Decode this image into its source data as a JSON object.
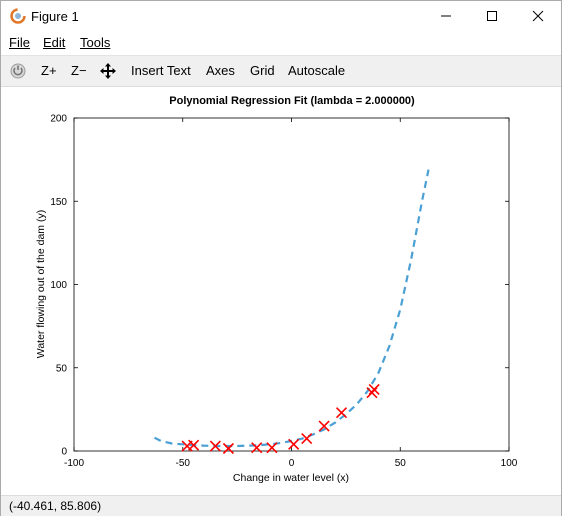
{
  "window": {
    "title": "Figure 1"
  },
  "menu": {
    "file": "File",
    "edit": "Edit",
    "tools": "Tools"
  },
  "toolbar": {
    "zoom_in": "Z+",
    "zoom_out": "Z−",
    "insert_text": "Insert Text",
    "axes": "Axes",
    "grid": "Grid",
    "autoscale": "Autoscale"
  },
  "status": {
    "coords": "(-40.461, 85.806)"
  },
  "colors": {
    "fit_line": "#4a9fd4",
    "markers": "#ff0000"
  },
  "chart_data": {
    "type": "scatter",
    "title": "Polynomial Regression Fit (lambda = 2.000000)",
    "xlabel": "Change in water level (x)",
    "ylabel": "Water flowing out of the dam (y)",
    "xlim": [
      -100,
      100
    ],
    "ylim": [
      0,
      200
    ],
    "xticks": [
      -100,
      -50,
      0,
      50,
      100
    ],
    "yticks": [
      0,
      50,
      100,
      150,
      200
    ],
    "xtick_labels": [
      "-100",
      "-50",
      "0",
      "50",
      "100"
    ],
    "ytick_labels": [
      "0",
      "50",
      "100",
      "150",
      "200"
    ],
    "series": [
      {
        "style": "x-markers",
        "x": [
          -48,
          -45,
          -35,
          -29,
          -16,
          -9,
          1,
          7,
          15,
          23,
          37,
          38
        ],
        "y": [
          3,
          3.5,
          3,
          1.5,
          2,
          2,
          4,
          7.5,
          15,
          23,
          35,
          37
        ]
      },
      {
        "style": "dashed-line",
        "x": [
          -63,
          -60,
          -55,
          -50,
          -45,
          -40,
          -35,
          -30,
          -25,
          -20,
          -15,
          -10,
          -5,
          0,
          5,
          10,
          15,
          20,
          25,
          30,
          35,
          40,
          45,
          50,
          55,
          60,
          63
        ],
        "y": [
          8,
          6,
          4.5,
          4,
          3.5,
          3.2,
          3,
          3,
          3,
          3.2,
          3.5,
          4,
          4.8,
          6,
          7.5,
          10,
          13,
          17,
          22,
          28,
          36,
          47,
          63,
          85,
          115,
          150,
          169
        ]
      }
    ]
  }
}
